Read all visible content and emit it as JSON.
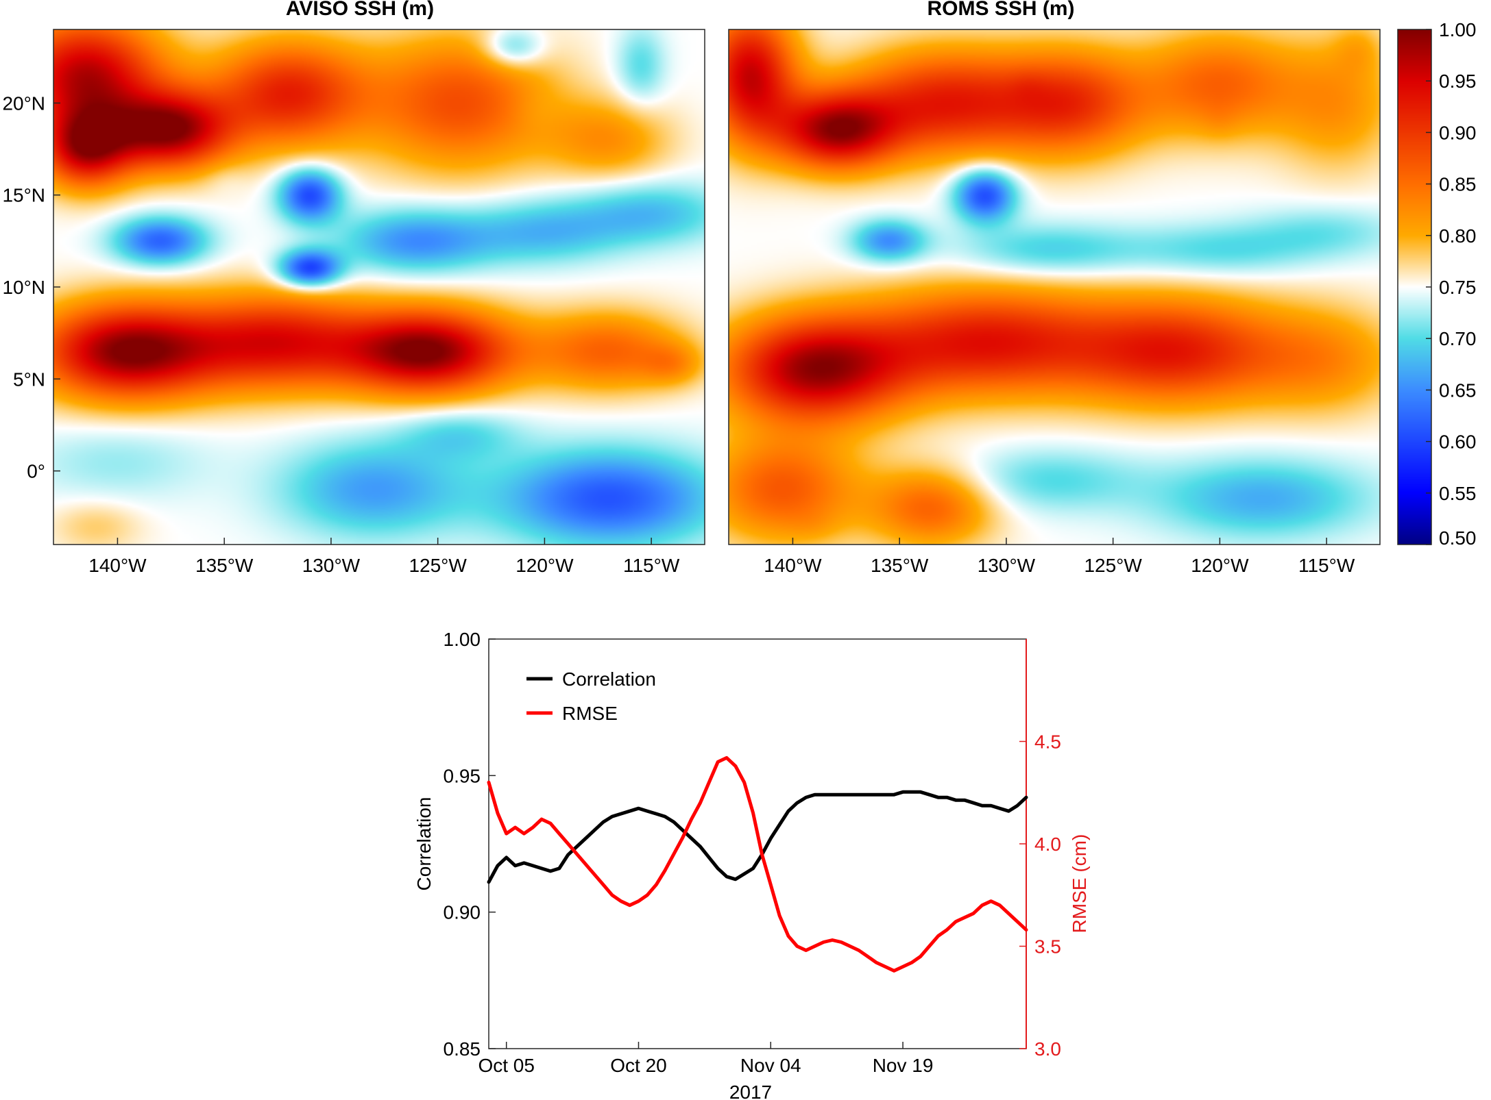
{
  "chart_data": [
    {
      "type": "heatmap",
      "title": "AVISO SSH (m)",
      "xlabel": "",
      "ylabel": "",
      "x_ticks": [
        "140°W",
        "135°W",
        "130°W",
        "125°W",
        "120°W",
        "115°W"
      ],
      "x_tick_values": [
        -140,
        -135,
        -130,
        -125,
        -120,
        -115
      ],
      "y_ticks": [
        "0°",
        "5°N",
        "10°N",
        "15°N",
        "20°N"
      ],
      "y_tick_values": [
        0,
        5,
        10,
        15,
        20
      ],
      "xlim": [
        -143,
        -112.5
      ],
      "ylim": [
        -4,
        24
      ],
      "features": [
        {
          "x": -141.5,
          "y": 21.5,
          "v": 0.97,
          "sx": 2.5,
          "sy": 2.2
        },
        {
          "x": -137.5,
          "y": 18.5,
          "v": 0.98,
          "sx": 2.0,
          "sy": 1.5
        },
        {
          "x": -141.5,
          "y": 17.5,
          "v": 0.95,
          "sx": 1.5,
          "sy": 1.5
        },
        {
          "x": -132.0,
          "y": 20.5,
          "v": 0.92,
          "sx": 2.5,
          "sy": 2.0
        },
        {
          "x": -124.0,
          "y": 20.0,
          "v": 0.88,
          "sx": 3.0,
          "sy": 2.5
        },
        {
          "x": -120.5,
          "y": 19.5,
          "v": 0.74,
          "sx": 0.8,
          "sy": 0.8
        },
        {
          "x": -121.5,
          "y": 23.0,
          "v": 0.68,
          "sx": 1.0,
          "sy": 0.8
        },
        {
          "x": -115.5,
          "y": 22.0,
          "v": 0.7,
          "sx": 0.8,
          "sy": 1.5
        },
        {
          "x": -117.0,
          "y": 18.0,
          "v": 0.82,
          "sx": 2.0,
          "sy": 1.5
        },
        {
          "x": -135.0,
          "y": 16.0,
          "v": 0.74,
          "sx": 0.7,
          "sy": 0.6
        },
        {
          "x": -131.0,
          "y": 15.0,
          "v": 0.6,
          "sx": 1.0,
          "sy": 1.0
        },
        {
          "x": -138.0,
          "y": 12.5,
          "v": 0.62,
          "sx": 1.5,
          "sy": 0.9
        },
        {
          "x": -131.0,
          "y": 11.0,
          "v": 0.59,
          "sx": 1.0,
          "sy": 0.7
        },
        {
          "x": -126.0,
          "y": 12.5,
          "v": 0.65,
          "sx": 2.5,
          "sy": 1.2
        },
        {
          "x": -120.0,
          "y": 13.0,
          "v": 0.68,
          "sx": 2.5,
          "sy": 1.2
        },
        {
          "x": -115.0,
          "y": 14.0,
          "v": 0.68,
          "sx": 2.5,
          "sy": 1.2
        },
        {
          "x": -139.5,
          "y": 6.5,
          "v": 1.0,
          "sx": 3.0,
          "sy": 1.8
        },
        {
          "x": -125.5,
          "y": 6.5,
          "v": 1.0,
          "sx": 2.8,
          "sy": 1.6
        },
        {
          "x": -132.5,
          "y": 7.0,
          "v": 0.93,
          "sx": 3.0,
          "sy": 1.8
        },
        {
          "x": -117.0,
          "y": 6.5,
          "v": 0.86,
          "sx": 2.5,
          "sy": 1.5
        },
        {
          "x": -114.0,
          "y": 5.8,
          "v": 0.8,
          "sx": 1.0,
          "sy": 0.8
        },
        {
          "x": -140.0,
          "y": 0.5,
          "v": 0.72,
          "sx": 3.0,
          "sy": 1.5
        },
        {
          "x": -128.0,
          "y": -1.0,
          "v": 0.66,
          "sx": 3.0,
          "sy": 1.8
        },
        {
          "x": -117.0,
          "y": -1.5,
          "v": 0.61,
          "sx": 3.5,
          "sy": 1.8
        },
        {
          "x": -141.0,
          "y": -3.0,
          "v": 0.78,
          "sx": 1.5,
          "sy": 1.0
        },
        {
          "x": -124.0,
          "y": 2.0,
          "v": 0.7,
          "sx": 2.0,
          "sy": 1.0
        }
      ]
    },
    {
      "type": "heatmap",
      "title": "ROMS SSH (m)",
      "xlabel": "",
      "ylabel": "",
      "x_ticks": [
        "140°W",
        "135°W",
        "130°W",
        "125°W",
        "120°W",
        "115°W"
      ],
      "x_tick_values": [
        -140,
        -135,
        -130,
        -125,
        -120,
        -115
      ],
      "xlim": [
        -143,
        -112.5
      ],
      "ylim": [
        -4,
        24
      ],
      "features": [
        {
          "x": -142.0,
          "y": 21.5,
          "v": 0.96,
          "sx": 1.5,
          "sy": 2.5
        },
        {
          "x": -138.0,
          "y": 18.5,
          "v": 0.97,
          "sx": 2.0,
          "sy": 1.5
        },
        {
          "x": -133.0,
          "y": 20.0,
          "v": 0.92,
          "sx": 3.0,
          "sy": 2.0
        },
        {
          "x": -127.0,
          "y": 20.0,
          "v": 0.9,
          "sx": 2.5,
          "sy": 2.0
        },
        {
          "x": -129.0,
          "y": 21.0,
          "v": 0.76,
          "sx": 0.6,
          "sy": 0.6
        },
        {
          "x": -120.0,
          "y": 19.0,
          "v": 0.76,
          "sx": 0.6,
          "sy": 0.7
        },
        {
          "x": -120.0,
          "y": 21.0,
          "v": 0.86,
          "sx": 2.5,
          "sy": 2.0
        },
        {
          "x": -114.5,
          "y": 20.0,
          "v": 0.82,
          "sx": 2.0,
          "sy": 2.5
        },
        {
          "x": -113.5,
          "y": 23.0,
          "v": 0.78,
          "sx": 0.8,
          "sy": 1.0
        },
        {
          "x": -131.0,
          "y": 15.0,
          "v": 0.6,
          "sx": 1.0,
          "sy": 1.0
        },
        {
          "x": -135.5,
          "y": 12.5,
          "v": 0.65,
          "sx": 1.2,
          "sy": 0.8
        },
        {
          "x": -128.0,
          "y": 12.0,
          "v": 0.69,
          "sx": 3.0,
          "sy": 1.0
        },
        {
          "x": -120.0,
          "y": 12.0,
          "v": 0.7,
          "sx": 3.0,
          "sy": 1.0
        },
        {
          "x": -115.0,
          "y": 13.0,
          "v": 0.71,
          "sx": 2.5,
          "sy": 1.0
        },
        {
          "x": -139.0,
          "y": 5.5,
          "v": 0.98,
          "sx": 3.0,
          "sy": 2.0
        },
        {
          "x": -131.0,
          "y": 7.0,
          "v": 0.93,
          "sx": 4.0,
          "sy": 2.0
        },
        {
          "x": -122.0,
          "y": 6.5,
          "v": 0.92,
          "sx": 3.5,
          "sy": 2.0
        },
        {
          "x": -115.0,
          "y": 6.0,
          "v": 0.82,
          "sx": 2.5,
          "sy": 2.0
        },
        {
          "x": -140.5,
          "y": -1.0,
          "v": 0.87,
          "sx": 2.5,
          "sy": 2.0
        },
        {
          "x": -128.0,
          "y": -0.5,
          "v": 0.7,
          "sx": 3.0,
          "sy": 1.2
        },
        {
          "x": -118.0,
          "y": -1.5,
          "v": 0.67,
          "sx": 3.5,
          "sy": 1.5
        },
        {
          "x": -133.5,
          "y": -2.0,
          "v": 0.86,
          "sx": 2.0,
          "sy": 1.5
        },
        {
          "x": -139.0,
          "y": -3.0,
          "v": 0.76,
          "sx": 0.8,
          "sy": 0.6
        }
      ]
    },
    {
      "type": "line",
      "title": "",
      "xlabel": "2017",
      "ylabel": "Correlation",
      "y2label": "RMSE (cm)",
      "x_ticks": [
        "Oct 05",
        "Oct 20",
        "Nov 04",
        "Nov 19"
      ],
      "x_tick_values": [
        "2017-10-05",
        "2017-10-20",
        "2017-11-04",
        "2017-11-19"
      ],
      "xlim": [
        "2017-10-03",
        "2017-12-03"
      ],
      "ylim": [
        0.85,
        1.0
      ],
      "y_ticks": [
        "0.85",
        "0.90",
        "0.95",
        "1.00"
      ],
      "y2lim": [
        3.0,
        5.0
      ],
      "y2_ticks": [
        "3.0",
        "3.5",
        "4.0",
        "4.5"
      ],
      "legend": "top-left",
      "x": [
        "2017-10-03",
        "2017-10-04",
        "2017-10-05",
        "2017-10-06",
        "2017-10-07",
        "2017-10-08",
        "2017-10-09",
        "2017-10-10",
        "2017-10-11",
        "2017-10-12",
        "2017-10-13",
        "2017-10-14",
        "2017-10-15",
        "2017-10-16",
        "2017-10-17",
        "2017-10-18",
        "2017-10-19",
        "2017-10-20",
        "2017-10-21",
        "2017-10-22",
        "2017-10-23",
        "2017-10-24",
        "2017-10-25",
        "2017-10-26",
        "2017-10-27",
        "2017-10-28",
        "2017-10-29",
        "2017-10-30",
        "2017-10-31",
        "2017-11-01",
        "2017-11-02",
        "2017-11-03",
        "2017-11-04",
        "2017-11-05",
        "2017-11-06",
        "2017-11-07",
        "2017-11-08",
        "2017-11-09",
        "2017-11-10",
        "2017-11-11",
        "2017-11-12",
        "2017-11-13",
        "2017-11-14",
        "2017-11-15",
        "2017-11-16",
        "2017-11-17",
        "2017-11-18",
        "2017-11-19",
        "2017-11-20",
        "2017-11-21",
        "2017-11-22",
        "2017-11-23",
        "2017-11-24",
        "2017-11-25",
        "2017-11-26",
        "2017-11-27",
        "2017-11-28",
        "2017-11-29",
        "2017-11-30",
        "2017-12-01",
        "2017-12-02",
        "2017-12-03"
      ],
      "series": [
        {
          "name": "Correlation",
          "axis": "left",
          "color": "#000000",
          "values": [
            0.911,
            0.917,
            0.92,
            0.917,
            0.918,
            0.917,
            0.916,
            0.915,
            0.916,
            0.921,
            0.924,
            0.927,
            0.93,
            0.933,
            0.935,
            0.936,
            0.937,
            0.938,
            0.937,
            0.936,
            0.935,
            0.933,
            0.93,
            0.927,
            0.924,
            0.92,
            0.916,
            0.913,
            0.912,
            0.914,
            0.916,
            0.921,
            0.927,
            0.932,
            0.937,
            0.94,
            0.942,
            0.943,
            0.943,
            0.943,
            0.943,
            0.943,
            0.943,
            0.943,
            0.943,
            0.943,
            0.943,
            0.944,
            0.944,
            0.944,
            0.943,
            0.942,
            0.942,
            0.941,
            0.941,
            0.94,
            0.939,
            0.939,
            0.938,
            0.937,
            0.939,
            0.942
          ]
        },
        {
          "name": "RMSE",
          "axis": "right",
          "color": "#ff0000",
          "values": [
            4.3,
            4.15,
            4.05,
            4.08,
            4.05,
            4.08,
            4.12,
            4.1,
            4.05,
            4.0,
            3.95,
            3.9,
            3.85,
            3.8,
            3.75,
            3.72,
            3.7,
            3.72,
            3.75,
            3.8,
            3.87,
            3.95,
            4.03,
            4.12,
            4.2,
            4.3,
            4.4,
            4.42,
            4.38,
            4.3,
            4.15,
            3.95,
            3.8,
            3.65,
            3.55,
            3.5,
            3.48,
            3.5,
            3.52,
            3.53,
            3.52,
            3.5,
            3.48,
            3.45,
            3.42,
            3.4,
            3.38,
            3.4,
            3.42,
            3.45,
            3.5,
            3.55,
            3.58,
            3.62,
            3.64,
            3.66,
            3.7,
            3.72,
            3.7,
            3.66,
            3.62,
            3.58
          ]
        }
      ]
    }
  ],
  "colorbar": {
    "ticks": [
      "0.50",
      "0.55",
      "0.60",
      "0.65",
      "0.70",
      "0.75",
      "0.80",
      "0.85",
      "0.90",
      "0.95",
      "1.00"
    ],
    "range": [
      0.5,
      1.0
    ],
    "base_value": 0.75
  },
  "colors": {
    "axis": "#262626",
    "rmse_axis": "#e31a1c",
    "correlation_line": "#000000",
    "rmse_line": "#ff0000"
  }
}
